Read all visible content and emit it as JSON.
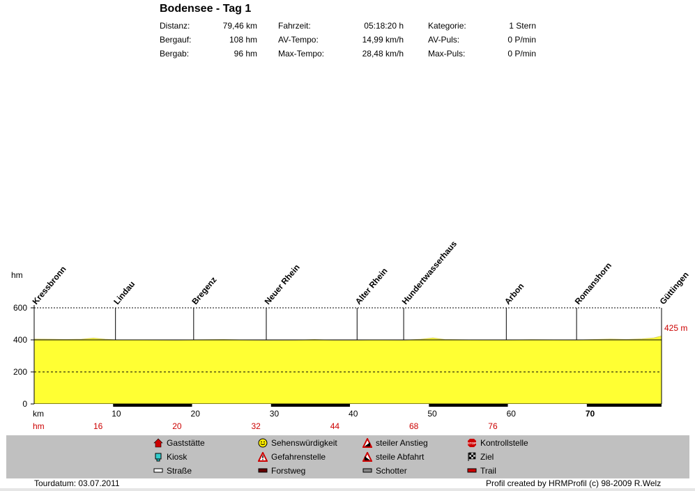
{
  "header": {
    "title": "Bodensee - Tag 1",
    "stats": [
      [
        {
          "label": "Distanz:",
          "value": "79,46 km"
        },
        {
          "label": "Bergauf:",
          "value": "108 hm"
        },
        {
          "label": "Bergab:",
          "value": "96 hm"
        }
      ],
      [
        {
          "label": "Fahrzeit:",
          "value": "05:18:20 h"
        },
        {
          "label": "AV-Tempo:",
          "value": "14,99 km/h"
        },
        {
          "label": "Max-Tempo:",
          "value": "28,48 km/h"
        }
      ],
      [
        {
          "label": "Kategorie:",
          "value": "1 Stern"
        },
        {
          "label": "AV-Puls:",
          "value": "0 P/min"
        },
        {
          "label": "Max-Puls:",
          "value": "0 P/min"
        }
      ]
    ]
  },
  "chart_data": {
    "type": "area",
    "ylabel": "hm",
    "xlabel": "km",
    "xlim": [
      0,
      79.46
    ],
    "ylim": [
      0,
      600
    ],
    "y_ticks": [
      0,
      200,
      400,
      600
    ],
    "x_ticks": [
      10,
      20,
      30,
      40,
      50,
      60,
      70
    ],
    "x_tick_labels": [
      "10",
      "20",
      "30",
      "40",
      "50",
      "60",
      "70"
    ],
    "grid": "dashed horizontal at 200, 400, 600",
    "fill_color": "#ffff33",
    "end_label": "425 m",
    "profile": [
      {
        "x": 0,
        "y": 405
      },
      {
        "x": 2,
        "y": 404
      },
      {
        "x": 4,
        "y": 402
      },
      {
        "x": 6,
        "y": 404
      },
      {
        "x": 7.5,
        "y": 411
      },
      {
        "x": 9,
        "y": 404
      },
      {
        "x": 10.3,
        "y": 400
      },
      {
        "x": 14,
        "y": 400
      },
      {
        "x": 18,
        "y": 398
      },
      {
        "x": 20.2,
        "y": 400
      },
      {
        "x": 24,
        "y": 402
      },
      {
        "x": 27,
        "y": 399
      },
      {
        "x": 29.4,
        "y": 397
      },
      {
        "x": 33,
        "y": 398
      },
      {
        "x": 35.5,
        "y": 402
      },
      {
        "x": 38,
        "y": 398
      },
      {
        "x": 40.9,
        "y": 398
      },
      {
        "x": 43,
        "y": 400
      },
      {
        "x": 46.8,
        "y": 398
      },
      {
        "x": 49,
        "y": 404
      },
      {
        "x": 50.5,
        "y": 412
      },
      {
        "x": 52,
        "y": 402
      },
      {
        "x": 55,
        "y": 400
      },
      {
        "x": 59.8,
        "y": 399
      },
      {
        "x": 63,
        "y": 401
      },
      {
        "x": 68.7,
        "y": 399
      },
      {
        "x": 71,
        "y": 402
      },
      {
        "x": 73,
        "y": 405
      },
      {
        "x": 75,
        "y": 402
      },
      {
        "x": 77,
        "y": 406
      },
      {
        "x": 78.5,
        "y": 412
      },
      {
        "x": 79.46,
        "y": 425
      }
    ],
    "waypoints": [
      {
        "name": "Kressbronn",
        "km": 0
      },
      {
        "name": "Lindau",
        "km": 10.3
      },
      {
        "name": "Bregenz",
        "km": 20.2
      },
      {
        "name": "Neuer Rhein",
        "km": 29.4
      },
      {
        "name": "Alter Rhein",
        "km": 40.9
      },
      {
        "name": "Hundertwasserhaus",
        "km": 46.8
      },
      {
        "name": "Arbon",
        "km": 59.8
      },
      {
        "name": "Romanshorn",
        "km": 68.7
      },
      {
        "name": "Güttingen",
        "km": 79.46
      }
    ],
    "surface_segments": [
      {
        "type": "Straße",
        "from": 0,
        "to": 10
      },
      {
        "type": "Forstweg",
        "from": 10,
        "to": 20
      },
      {
        "type": "Straße",
        "from": 20,
        "to": 30
      },
      {
        "type": "Forstweg",
        "from": 30,
        "to": 40
      },
      {
        "type": "Straße",
        "from": 40,
        "to": 50
      },
      {
        "type": "Forstweg",
        "from": 50,
        "to": 60
      },
      {
        "type": "Straße",
        "from": 60,
        "to": 70
      },
      {
        "type": "Forstweg",
        "from": 70,
        "to": 79.46
      }
    ],
    "hm_row_label": "hm",
    "hm_values": [
      "16",
      "20",
      "32",
      "44",
      "68",
      "76"
    ]
  },
  "legend": [
    {
      "label": "Gaststätte",
      "icon": "house-icon",
      "color": "#cc0000"
    },
    {
      "label": "Kiosk",
      "icon": "kiosk-icon",
      "color": "#33cccc"
    },
    {
      "label": "Straße",
      "icon": "road-icon",
      "color": "#ffffff"
    },
    {
      "label": "Sehenswürdigkeit",
      "icon": "smiley-icon",
      "color": "#ffee00"
    },
    {
      "label": "Gefahrenstelle",
      "icon": "warning-icon",
      "color": "#cc0000"
    },
    {
      "label": "Forstweg",
      "icon": "forest-road-icon",
      "color": "#660000"
    },
    {
      "label": "steiler Anstieg",
      "icon": "steep-climb-icon",
      "color": "#cc0000"
    },
    {
      "label": "steile Abfahrt",
      "icon": "steep-descent-icon",
      "color": "#cc0000"
    },
    {
      "label": "Schotter",
      "icon": "gravel-icon",
      "color": "#888888"
    },
    {
      "label": "Kontrollstelle",
      "icon": "stop-icon",
      "color": "#cc0000"
    },
    {
      "label": "Ziel",
      "icon": "finish-flag-icon",
      "color": "#000000"
    },
    {
      "label": "Trail",
      "icon": "trail-icon",
      "color": "#cc0000"
    }
  ],
  "footer": {
    "tour_date": "Tourdatum: 03.07.2011",
    "credit": "Profil created by HRMProfil (c) 98-2009 R.Welz"
  }
}
